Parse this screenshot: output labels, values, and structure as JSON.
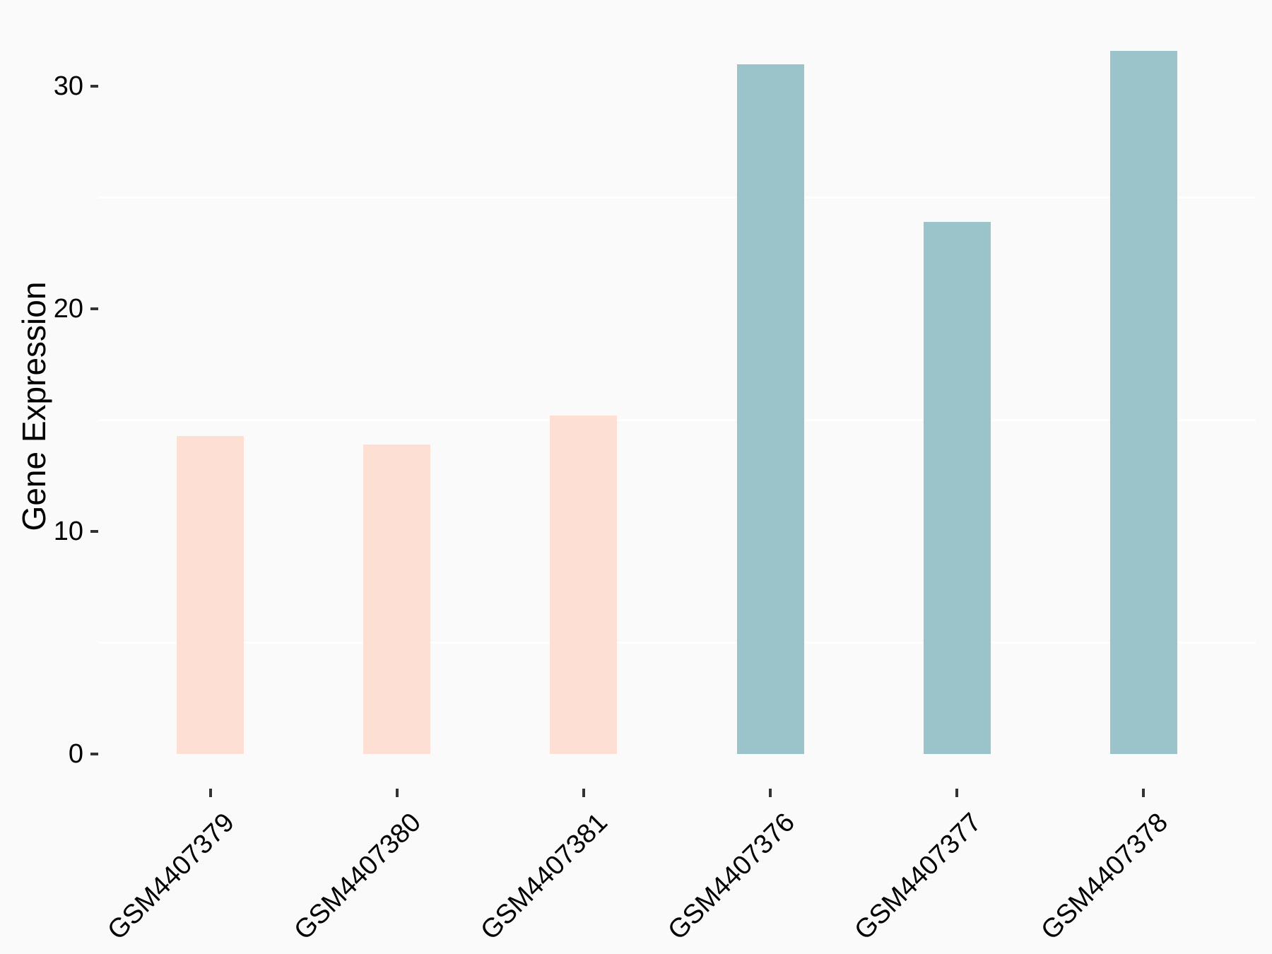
{
  "figure": {
    "background": "#FAFAFA",
    "gridline_color": "#FFFFFF",
    "tick_mark_color": "#333333",
    "text_color": "#000000"
  },
  "chart_data": {
    "type": "bar",
    "title": "",
    "xlabel": "",
    "ylabel": "Gene Expression",
    "categories": [
      "GSM4407379",
      "GSM4407380",
      "GSM4407381",
      "GSM4407376",
      "GSM4407377",
      "GSM4407378"
    ],
    "values": [
      14.3,
      13.9,
      15.2,
      31.0,
      23.9,
      31.6
    ],
    "bar_colors": [
      "#FDDFD3",
      "#FDDFD3",
      "#FDDFD3",
      "#9AC4C9",
      "#9AC4C9",
      "#9AC4C9"
    ],
    "group_colors": {
      "peach": "#FDDFD3",
      "teal": "#9AC4C9"
    },
    "yticks": [
      0,
      10,
      20,
      30
    ],
    "ytick_labels": [
      "0",
      "10",
      "20",
      "30"
    ],
    "minor_gridlines": [
      5,
      15,
      25
    ],
    "ylim": [
      -1.6,
      33.9
    ],
    "x_tick_angle": 45,
    "grid": "minor-horizontal-only",
    "legend": "none"
  }
}
